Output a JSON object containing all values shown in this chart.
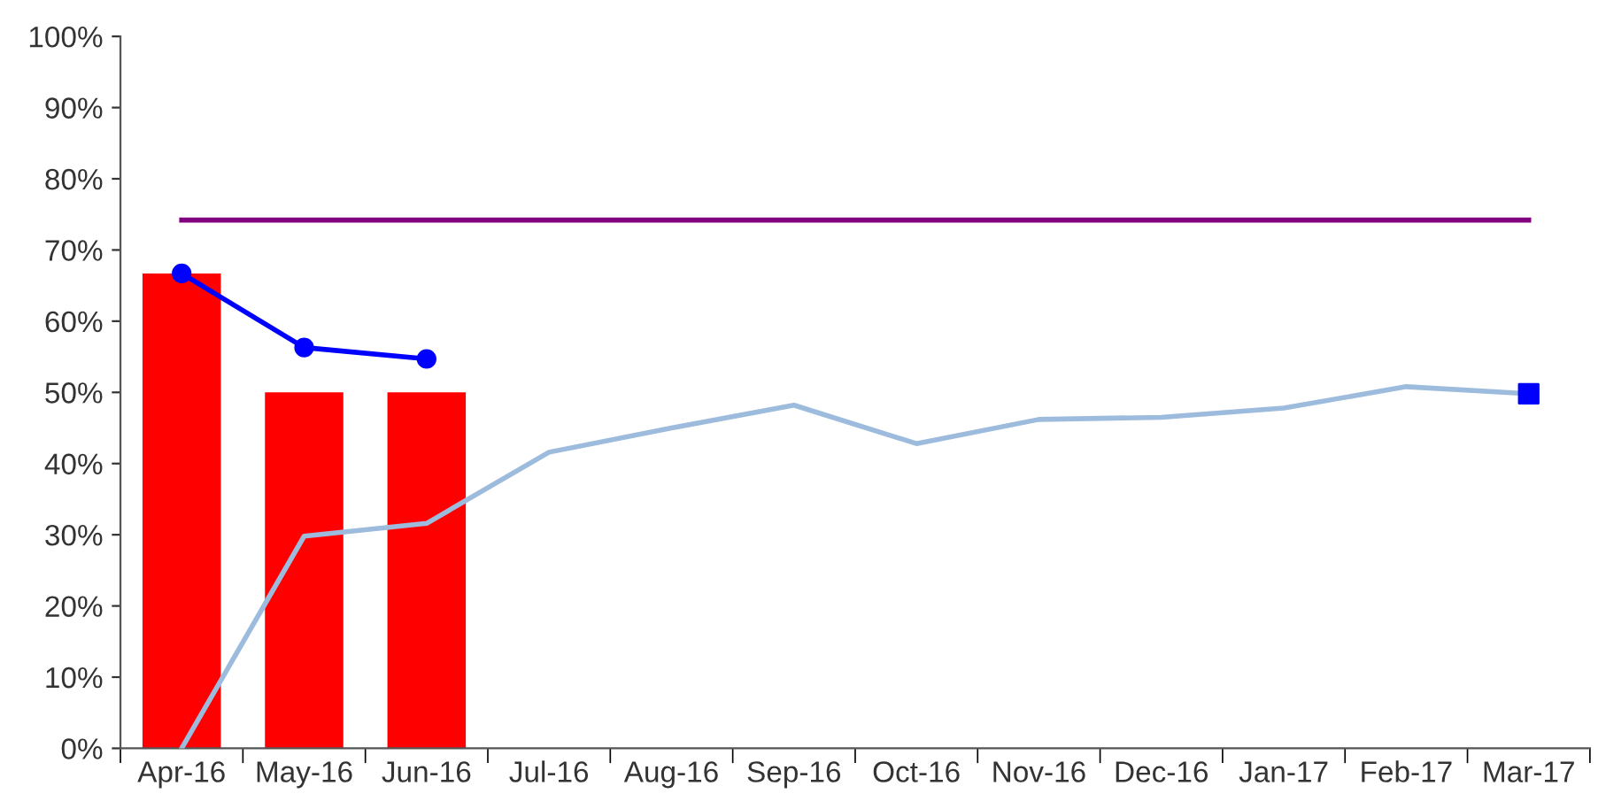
{
  "chart_data": {
    "type": "bar",
    "categories": [
      "Apr-16",
      "May-16",
      "Jun-16",
      "Jul-16",
      "Aug-16",
      "Sep-16",
      "Oct-16",
      "Nov-16",
      "Dec-16",
      "Jan-17",
      "Feb-17",
      "Mar-17"
    ],
    "series": [
      {
        "color": "#ff0000",
        "values": [
          66.7,
          50,
          50,
          null,
          null,
          null,
          null,
          null,
          null,
          null,
          null,
          null
        ]
      },
      {
        "type": "line",
        "color": "#800080",
        "marker": "none",
        "values": [
          74.2,
          74.2,
          74.2,
          74.2,
          74.2,
          74.2,
          74.2,
          74.2,
          74.2,
          74.2,
          74.2,
          74.2
        ]
      },
      {
        "type": "line",
        "color": "#0000ff",
        "marker": "circle",
        "values": [
          66.7,
          56.3,
          54.7,
          null,
          null,
          null,
          null,
          null,
          null,
          null,
          null,
          null
        ]
      },
      {
        "type": "line",
        "color": "#9dbbdd",
        "marker": "none",
        "values": [
          0,
          29.8,
          31.6,
          41.6,
          45,
          48.2,
          42.8,
          46.2,
          46.5,
          47.8,
          50.8,
          49.8
        ]
      },
      {
        "type": "scatter",
        "color": "#0000ff",
        "marker": "square",
        "values": [
          null,
          null,
          null,
          null,
          null,
          null,
          null,
          null,
          null,
          null,
          null,
          49.8
        ]
      }
    ],
    "ylim": [
      0,
      100
    ],
    "yticks": [
      {
        "value": 0,
        "label": "0%"
      },
      {
        "value": 10,
        "label": "10%"
      },
      {
        "value": 20,
        "label": "20%"
      },
      {
        "value": 30,
        "label": "30%"
      },
      {
        "value": 40,
        "label": "40%"
      },
      {
        "value": 50,
        "label": "50%"
      },
      {
        "value": 60,
        "label": "60%"
      },
      {
        "value": 70,
        "label": "70%"
      },
      {
        "value": 80,
        "label": "80%"
      },
      {
        "value": 90,
        "label": "90%"
      },
      {
        "value": 100,
        "label": "100%"
      }
    ],
    "grid": false,
    "legend": false
  }
}
